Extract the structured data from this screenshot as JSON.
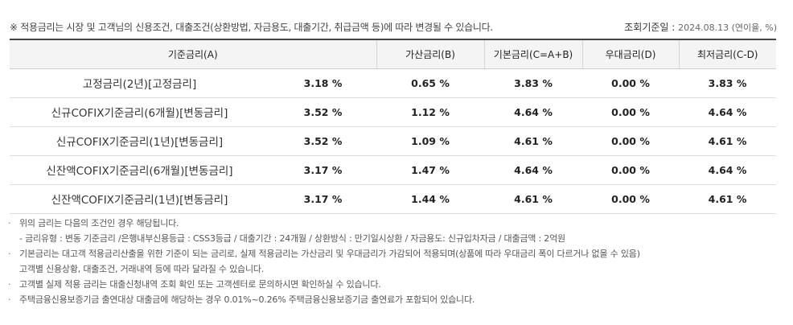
{
  "notice": "※ 적용금리는 시장 및 고객님의 신용조건, 대출조건(상환방법, 자금용도, 대출기간, 취급금액 등)에 따라 변경될 수 있습니다.",
  "as_of_label": "조회기준일 :",
  "as_of_value": "2024.08.13 (연이율, %)",
  "table": {
    "headers": [
      "기준금리(A)",
      "가산금리(B)",
      "기본금리(C=A+B)",
      "우대금리(D)",
      "최저금리(C-D)"
    ],
    "rows": [
      {
        "name": "고정금리(2년)[고정금리]",
        "base": "3.18 %",
        "spread": "0.65 %",
        "basic": "3.83 %",
        "pref": "0.00 %",
        "min": "3.83 %"
      },
      {
        "name": "신규COFIX기준금리(6개월)[변동금리]",
        "base": "3.52 %",
        "spread": "1.12 %",
        "basic": "4.64 %",
        "pref": "0.00 %",
        "min": "4.64 %"
      },
      {
        "name": "신규COFIX기준금리(1년)[변동금리]",
        "base": "3.52 %",
        "spread": "1.09 %",
        "basic": "4.61 %",
        "pref": "0.00 %",
        "min": "4.61 %"
      },
      {
        "name": "신잔액COFIX기준금리(6개월)[변동금리]",
        "base": "3.17 %",
        "spread": "1.47 %",
        "basic": "4.64 %",
        "pref": "0.00 %",
        "min": "4.64 %"
      },
      {
        "name": "신잔액COFIX기준금리(1년)[변동금리]",
        "base": "3.17 %",
        "spread": "1.44 %",
        "basic": "4.61 %",
        "pref": "0.00 %",
        "min": "4.61 %"
      }
    ]
  },
  "notes": {
    "bullet": "·",
    "line1": "위의 금리는 다음의 조건인 경우 해당됩니다.",
    "line1_sub": "- 금리유형 : 변동 기준금리 /은행내부신용등급 : CSS3등급 / 대출기간 : 24개월 / 상환방식 : 만기일시상환 / 자금용도: 신규입차자금 / 대출금액 : 2억원",
    "line2": "기본금리는 대고객 적용금리산출을 위한 기준이 되는 금리로, 실제 적용금리는 가산금리 및 우대금리가 가감되어 적용되며(상품에 따라 우대금리 폭이 다르거나 없을 수 있음)",
    "line2_cont": "고객별 신용상황, 대출조건, 거래내역 등에 따라 달라질 수 있습니다.",
    "line3": "고객별 실제 적용 금리는 대출신청내역 조회 확인 또는 고객센터로 문의하시면 확인하실 수 있습니다.",
    "line4": "주택금융신용보증기금 출연대상 대출금에 해당하는 경우 0.01%~0.26% 주택금융신용보증기금 출연료가 포함되어 있습니다."
  }
}
